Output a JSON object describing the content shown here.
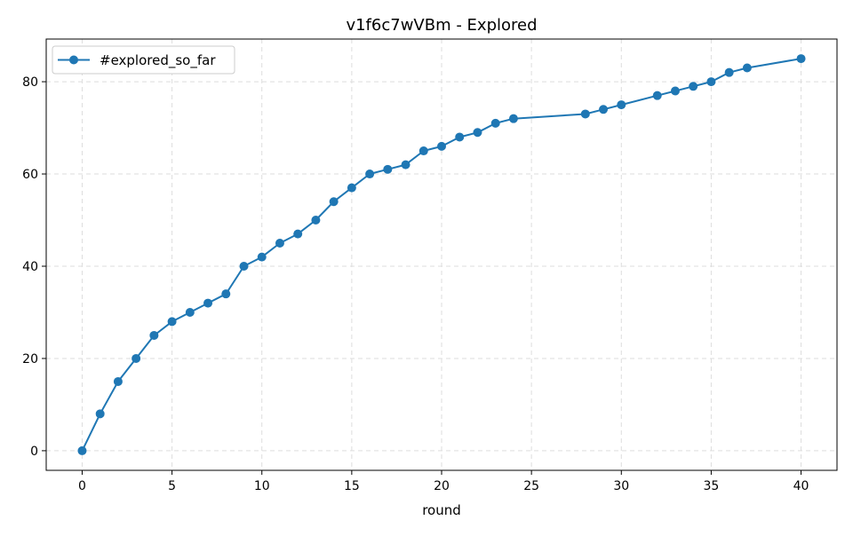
{
  "chart_data": {
    "type": "line",
    "title": "v1f6c7wVBm - Explored",
    "xlabel": "round",
    "ylabel": "",
    "xlim": [
      -2,
      42
    ],
    "ylim": [
      -4.25,
      89.25
    ],
    "xticks": [
      0,
      5,
      10,
      15,
      20,
      25,
      30,
      35,
      40
    ],
    "yticks": [
      0,
      20,
      40,
      60,
      80
    ],
    "grid": true,
    "legend_position": "top-left",
    "series": [
      {
        "name": "#explored_so_far",
        "color": "#1f77b4",
        "marker": "circle",
        "x": [
          0,
          1,
          2,
          3,
          4,
          5,
          6,
          7,
          8,
          9,
          10,
          11,
          12,
          13,
          14,
          15,
          16,
          17,
          18,
          19,
          20,
          21,
          22,
          23,
          24,
          28,
          29,
          30,
          32,
          33,
          34,
          35,
          36,
          37,
          40
        ],
        "y": [
          0,
          8,
          15,
          20,
          25,
          28,
          30,
          32,
          34,
          40,
          42,
          45,
          47,
          50,
          54,
          57,
          60,
          61,
          62,
          65,
          66,
          68,
          69,
          71,
          72,
          73,
          74,
          75,
          77,
          78,
          79,
          80,
          82,
          83,
          85
        ]
      }
    ]
  }
}
